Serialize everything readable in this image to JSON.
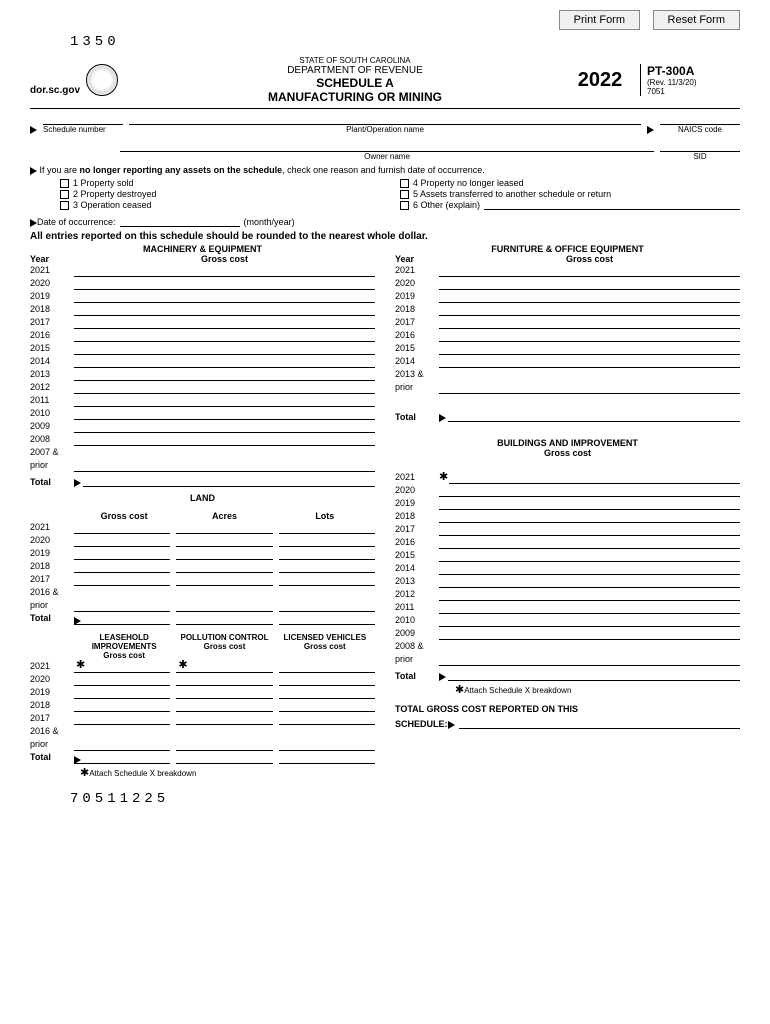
{
  "buttons": {
    "print": "Print Form",
    "reset": "Reset Form"
  },
  "top_code": "1350",
  "header": {
    "website": "dor.sc.gov",
    "state": "STATE OF SOUTH CAROLINA",
    "dept": "DEPARTMENT OF REVENUE",
    "sched": "SCHEDULE A",
    "title": "MANUFACTURING OR MINING",
    "year": "2022",
    "form_num": "PT-300A",
    "rev": "(Rev. 11/3/20)",
    "code": "7051"
  },
  "id_labels": {
    "schedule": "Schedule number",
    "plant": "Plant/Operation name",
    "naics": "NAICS code",
    "owner": "Owner name",
    "sid": "SID"
  },
  "reason_intro_a": "If you are ",
  "reason_intro_b": "no longer reporting any assets on the schedule",
  "reason_intro_c": ", check one reason and furnish date of occurrence.",
  "reasons": {
    "r1": "1  Property sold",
    "r2": "2  Property destroyed",
    "r3": "3  Operation ceased",
    "r4": "4  Property no longer leased",
    "r5": "5  Assets transferred to another schedule or return",
    "r6": "6  Other (explain)"
  },
  "date_occ": "Date of occurrence:",
  "date_occ_suffix": "(month/year)",
  "rounding": "All entries reported on this schedule should be rounded to the nearest whole dollar.",
  "year_label": "Year",
  "gross_cost": "Gross cost",
  "total_label": "Total",
  "sections": {
    "machinery": "MACHINERY & EQUIPMENT",
    "land": "LAND",
    "land_cols": {
      "gross": "Gross cost",
      "acres": "Acres",
      "lots": "Lots"
    },
    "leasehold": "LEASEHOLD IMPROVEMENTS",
    "pollution": "POLLUTION CONTROL",
    "vehicles": "LICENSED VEHICLES",
    "furniture": "FURNITURE & OFFICE EQUIPMENT",
    "buildings": "BUILDINGS AND IMPROVEMENT"
  },
  "machinery_years": [
    "2021",
    "2020",
    "2019",
    "2018",
    "2017",
    "2016",
    "2015",
    "2014",
    "2013",
    "2012",
    "2011",
    "2010",
    "2009",
    "2008"
  ],
  "machinery_prior": "2007 & prior",
  "land_years": [
    "2021",
    "2020",
    "2019",
    "2018",
    "2017"
  ],
  "land_prior": "2016 & prior",
  "triple_years": [
    "2021",
    "2020",
    "2019",
    "2018",
    "2017"
  ],
  "triple_prior": "2016 & prior",
  "furniture_years": [
    "2021",
    "2020",
    "2019",
    "2018",
    "2017",
    "2016",
    "2015",
    "2014"
  ],
  "furniture_prior": "2013 & prior",
  "buildings_years": [
    "2021",
    "2020",
    "2019",
    "2018",
    "2017",
    "2016",
    "2015",
    "2014",
    "2013",
    "2012",
    "2011",
    "2010",
    "2009"
  ],
  "buildings_prior": "2008 & prior",
  "attach_note": "Attach Schedule X breakdown",
  "total_gross_a": "TOTAL GROSS COST REPORTED ON THIS",
  "total_gross_b": "SCHEDULE:",
  "bottom_code": "70511225"
}
